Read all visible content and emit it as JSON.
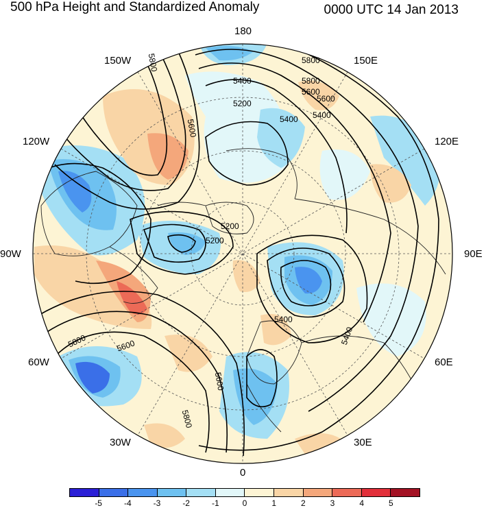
{
  "header": {
    "title": "500 hPa Height and Standardized Anomaly",
    "datetime": "0000 UTC 14 Jan 2013"
  },
  "map": {
    "projection": "polar-stereographic-north",
    "longitude_labels": [
      "180",
      "150E",
      "120E",
      "90E",
      "60E",
      "30E",
      "0",
      "30W",
      "60W",
      "90W",
      "120W",
      "150W"
    ],
    "contour_labels": [
      "5800",
      "5600",
      "5400",
      "5200",
      "5800",
      "5600",
      "5400",
      "5200",
      "5800",
      "5600",
      "5400",
      "5200",
      "5600",
      "5800",
      "5800",
      "5600",
      "5400",
      "5400"
    ],
    "land_color": "#ffffff",
    "background": "#ffffff"
  },
  "colorbar": {
    "labels": [
      "-5",
      "-4",
      "-3",
      "-2",
      "-1",
      "0",
      "1",
      "2",
      "3",
      "4",
      "5"
    ],
    "colors": [
      "#2b1fd6",
      "#3a6fe8",
      "#4a94ef",
      "#6ec1f0",
      "#a4dff4",
      "#e2f7f9",
      "#fdf4d4",
      "#f9d5a6",
      "#f4a77b",
      "#ec6a57",
      "#e22f3a",
      "#a31224"
    ]
  }
}
